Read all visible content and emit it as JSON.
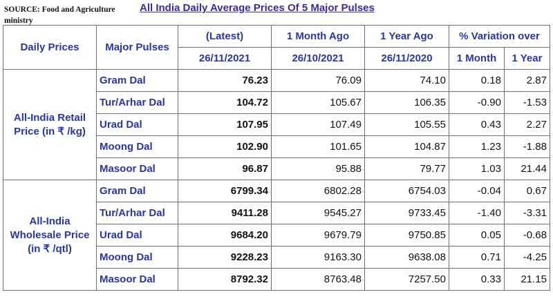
{
  "source_text": "SOURCE: Food and Agriculture ministry",
  "title": "All India Daily Average Prices Of 5 Major Pulses",
  "headers": {
    "daily_prices": "Daily Prices",
    "major_pulses": "Major Pulses",
    "latest": "(Latest)",
    "month_ago": "1 Month Ago",
    "year_ago": "1 Year Ago",
    "variation": "% Variation over",
    "date_latest": "26/11/2021",
    "date_month": "26/10/2021",
    "date_year": "26/11/2020",
    "var_month": "1 Month",
    "var_year": "1 Year"
  },
  "groups": [
    {
      "label": "All-India Retail Price (in ₹ /kg)",
      "rows": [
        {
          "pulse": "Gram Dal",
          "latest": "76.23",
          "month": "76.09",
          "year": "74.10",
          "var_m": "0.18",
          "var_y": "2.87"
        },
        {
          "pulse": "Tur/Arhar Dal",
          "latest": "104.72",
          "month": "105.67",
          "year": "106.35",
          "var_m": "-0.90",
          "var_y": "-1.53"
        },
        {
          "pulse": "Urad Dal",
          "latest": "107.95",
          "month": "107.49",
          "year": "105.55",
          "var_m": "0.43",
          "var_y": "2.27"
        },
        {
          "pulse": "Moong Dal",
          "latest": "102.90",
          "month": "101.65",
          "year": "104.87",
          "var_m": "1.23",
          "var_y": "-1.88"
        },
        {
          "pulse": "Masoor Dal",
          "latest": "96.87",
          "month": "95.88",
          "year": "79.77",
          "var_m": "1.03",
          "var_y": "21.44"
        }
      ]
    },
    {
      "label": "All-India Wholesale Price (in ₹ /qtl)",
      "rows": [
        {
          "pulse": "Gram Dal",
          "latest": "6799.34",
          "month": "6802.28",
          "year": "6754.03",
          "var_m": "-0.04",
          "var_y": "0.67"
        },
        {
          "pulse": "Tur/Arhar Dal",
          "latest": "9411.28",
          "month": "9545.27",
          "year": "9733.45",
          "var_m": "-1.40",
          "var_y": "-3.31"
        },
        {
          "pulse": "Urad Dal",
          "latest": "9684.20",
          "month": "9679.79",
          "year": "9750.85",
          "var_m": "0.05",
          "var_y": "-0.68"
        },
        {
          "pulse": "Moong Dal",
          "latest": "9228.23",
          "month": "9163.30",
          "year": "9638.08",
          "var_m": "0.71",
          "var_y": "-4.25"
        },
        {
          "pulse": "Masoor Dal",
          "latest": "8792.32",
          "month": "8763.48",
          "year": "7257.50",
          "var_m": "0.33",
          "var_y": "21.15"
        }
      ]
    }
  ]
}
